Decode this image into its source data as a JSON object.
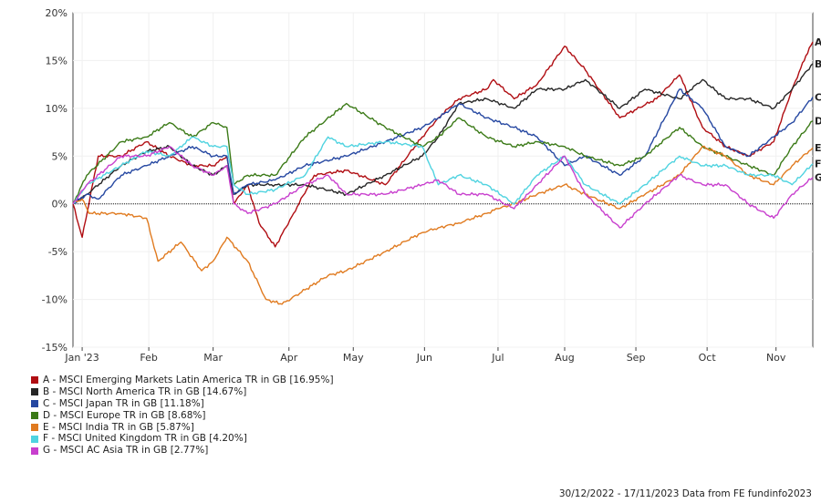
{
  "chart_data": {
    "type": "line",
    "title": "",
    "xlabel": "",
    "ylabel": "",
    "ylim": [
      -15,
      20
    ],
    "yticks": [
      -15,
      -10,
      -5,
      0,
      5,
      10,
      15,
      20
    ],
    "ytick_labels": [
      "-15%",
      "-10%",
      "-5%",
      "0%",
      "5%",
      "10%",
      "15%",
      "20%"
    ],
    "x_start": "2022-12-30",
    "x_end": "2023-11-17",
    "xticks": [
      {
        "label": "Jan '23",
        "date": "2023-01-03"
      },
      {
        "label": "Feb",
        "date": "2023-02-01"
      },
      {
        "label": "Mar",
        "date": "2023-03-01"
      },
      {
        "label": "Apr",
        "date": "2023-04-03"
      },
      {
        "label": "May",
        "date": "2023-05-01"
      },
      {
        "label": "Jun",
        "date": "2023-06-01"
      },
      {
        "label": "Jul",
        "date": "2023-07-03"
      },
      {
        "label": "Aug",
        "date": "2023-08-01"
      },
      {
        "label": "Sep",
        "date": "2023-09-01"
      },
      {
        "label": "Oct",
        "date": "2023-10-02"
      },
      {
        "label": "Nov",
        "date": "2023-11-01"
      }
    ],
    "grid": true,
    "series": [
      {
        "letter": "A",
        "name": "A - MSCI Emerging Markets Latin America TR in GB [16.95%]",
        "color": "#b00d12",
        "points": [
          [
            "2022-12-30",
            0
          ],
          [
            "2023-01-03",
            -3.5
          ],
          [
            "2023-01-10",
            5
          ],
          [
            "2023-01-20",
            5
          ],
          [
            "2023-01-31",
            6.5
          ],
          [
            "2023-02-10",
            5
          ],
          [
            "2023-02-20",
            4
          ],
          [
            "2023-03-01",
            4
          ],
          [
            "2023-03-07",
            5
          ],
          [
            "2023-03-10",
            0
          ],
          [
            "2023-03-16",
            2
          ],
          [
            "2023-03-21",
            -2
          ],
          [
            "2023-03-28",
            -4.5
          ],
          [
            "2023-04-05",
            -1
          ],
          [
            "2023-04-14",
            3
          ],
          [
            "2023-04-28",
            3.5
          ],
          [
            "2023-05-15",
            2
          ],
          [
            "2023-05-31",
            7
          ],
          [
            "2023-06-07",
            9
          ],
          [
            "2023-06-16",
            11
          ],
          [
            "2023-06-28",
            12
          ],
          [
            "2023-07-01",
            13
          ],
          [
            "2023-07-10",
            11
          ],
          [
            "2023-07-20",
            12.5
          ],
          [
            "2023-08-01",
            16.5
          ],
          [
            "2023-08-10",
            14
          ],
          [
            "2023-08-25",
            9
          ],
          [
            "2023-09-10",
            11
          ],
          [
            "2023-09-20",
            13.5
          ],
          [
            "2023-09-30",
            8
          ],
          [
            "2023-10-10",
            6
          ],
          [
            "2023-10-20",
            5
          ],
          [
            "2023-10-31",
            6.5
          ],
          [
            "2023-11-08",
            12
          ],
          [
            "2023-11-14",
            15.5
          ],
          [
            "2023-11-17",
            16.95
          ]
        ]
      },
      {
        "letter": "B",
        "name": "B - MSCI North America TR in GB [14.67%]",
        "color": "#262626",
        "points": [
          [
            "2022-12-30",
            0
          ],
          [
            "2023-01-05",
            1
          ],
          [
            "2023-01-20",
            4
          ],
          [
            "2023-01-31",
            5.5
          ],
          [
            "2023-02-10",
            6
          ],
          [
            "2023-02-20",
            4
          ],
          [
            "2023-03-01",
            3
          ],
          [
            "2023-03-07",
            4
          ],
          [
            "2023-03-10",
            1
          ],
          [
            "2023-03-16",
            2
          ],
          [
            "2023-03-28",
            2
          ],
          [
            "2023-04-10",
            2
          ],
          [
            "2023-04-28",
            1
          ],
          [
            "2023-05-15",
            3
          ],
          [
            "2023-05-31",
            5
          ],
          [
            "2023-06-07",
            7
          ],
          [
            "2023-06-16",
            10.5
          ],
          [
            "2023-06-28",
            11
          ],
          [
            "2023-07-10",
            10
          ],
          [
            "2023-07-20",
            12
          ],
          [
            "2023-08-01",
            12
          ],
          [
            "2023-08-10",
            13
          ],
          [
            "2023-08-25",
            10
          ],
          [
            "2023-09-05",
            12
          ],
          [
            "2023-09-20",
            11
          ],
          [
            "2023-09-30",
            13
          ],
          [
            "2023-10-10",
            11
          ],
          [
            "2023-10-20",
            11
          ],
          [
            "2023-10-31",
            10
          ],
          [
            "2023-11-08",
            12
          ],
          [
            "2023-11-17",
            14.67
          ]
        ]
      },
      {
        "letter": "C",
        "name": "C - MSCI Japan TR in GB [11.18%]",
        "color": "#2547a1",
        "points": [
          [
            "2022-12-30",
            0
          ],
          [
            "2023-01-05",
            1
          ],
          [
            "2023-01-10",
            0.5
          ],
          [
            "2023-01-20",
            3
          ],
          [
            "2023-01-31",
            4
          ],
          [
            "2023-02-10",
            5
          ],
          [
            "2023-02-20",
            6
          ],
          [
            "2023-03-01",
            5
          ],
          [
            "2023-03-07",
            5
          ],
          [
            "2023-03-10",
            1
          ],
          [
            "2023-03-16",
            2
          ],
          [
            "2023-03-28",
            2.5
          ],
          [
            "2023-04-10",
            4
          ],
          [
            "2023-04-28",
            5
          ],
          [
            "2023-05-15",
            6.5
          ],
          [
            "2023-05-31",
            8
          ],
          [
            "2023-06-07",
            9
          ],
          [
            "2023-06-16",
            10.5
          ],
          [
            "2023-06-28",
            9
          ],
          [
            "2023-07-10",
            8
          ],
          [
            "2023-07-20",
            7
          ],
          [
            "2023-08-01",
            4
          ],
          [
            "2023-08-10",
            5
          ],
          [
            "2023-08-25",
            3
          ],
          [
            "2023-09-05",
            5
          ],
          [
            "2023-09-20",
            12
          ],
          [
            "2023-09-30",
            10
          ],
          [
            "2023-10-10",
            6
          ],
          [
            "2023-10-20",
            5
          ],
          [
            "2023-10-31",
            7
          ],
          [
            "2023-11-08",
            8.5
          ],
          [
            "2023-11-17",
            11.18
          ]
        ]
      },
      {
        "letter": "D",
        "name": "D - MSCI Europe TR in GB [8.68%]",
        "color": "#3b7a17",
        "points": [
          [
            "2022-12-30",
            0
          ],
          [
            "2023-01-05",
            3
          ],
          [
            "2023-01-20",
            6.5
          ],
          [
            "2023-01-31",
            7
          ],
          [
            "2023-02-10",
            8.5
          ],
          [
            "2023-02-20",
            7
          ],
          [
            "2023-03-01",
            8.5
          ],
          [
            "2023-03-07",
            8
          ],
          [
            "2023-03-10",
            2
          ],
          [
            "2023-03-16",
            3
          ],
          [
            "2023-03-28",
            3
          ],
          [
            "2023-04-10",
            7
          ],
          [
            "2023-04-28",
            10.5
          ],
          [
            "2023-05-15",
            8
          ],
          [
            "2023-05-31",
            6
          ],
          [
            "2023-06-07",
            7
          ],
          [
            "2023-06-16",
            9
          ],
          [
            "2023-06-28",
            7
          ],
          [
            "2023-07-10",
            6
          ],
          [
            "2023-07-20",
            6.5
          ],
          [
            "2023-08-01",
            6
          ],
          [
            "2023-08-10",
            5
          ],
          [
            "2023-08-25",
            4
          ],
          [
            "2023-09-05",
            5
          ],
          [
            "2023-09-20",
            8
          ],
          [
            "2023-09-30",
            6
          ],
          [
            "2023-10-10",
            5
          ],
          [
            "2023-10-20",
            4
          ],
          [
            "2023-10-31",
            3
          ],
          [
            "2023-11-08",
            6
          ],
          [
            "2023-11-17",
            8.68
          ]
        ]
      },
      {
        "letter": "E",
        "name": "E - MSCI India TR in GB [5.87%]",
        "color": "#e07a1f",
        "points": [
          [
            "2022-12-30",
            0
          ],
          [
            "2023-01-03",
            0.5
          ],
          [
            "2023-01-06",
            -1
          ],
          [
            "2023-01-20",
            -1
          ],
          [
            "2023-01-31",
            -1.5
          ],
          [
            "2023-02-05",
            -6
          ],
          [
            "2023-02-15",
            -4
          ],
          [
            "2023-02-24",
            -7
          ],
          [
            "2023-03-01",
            -6
          ],
          [
            "2023-03-07",
            -3.5
          ],
          [
            "2023-03-16",
            -6
          ],
          [
            "2023-03-24",
            -10
          ],
          [
            "2023-03-31",
            -10.5
          ],
          [
            "2023-04-10",
            -9
          ],
          [
            "2023-04-20",
            -7.5
          ],
          [
            "2023-04-28",
            -7
          ],
          [
            "2023-05-15",
            -5
          ],
          [
            "2023-05-31",
            -3
          ],
          [
            "2023-06-07",
            -2.5
          ],
          [
            "2023-06-16",
            -2
          ],
          [
            "2023-06-28",
            -1
          ],
          [
            "2023-07-03",
            -0.5
          ],
          [
            "2023-07-10",
            0
          ],
          [
            "2023-07-20",
            1
          ],
          [
            "2023-08-01",
            2
          ],
          [
            "2023-08-10",
            1
          ],
          [
            "2023-08-25",
            -0.5
          ],
          [
            "2023-09-05",
            1
          ],
          [
            "2023-09-20",
            3
          ],
          [
            "2023-09-30",
            6
          ],
          [
            "2023-10-10",
            5
          ],
          [
            "2023-10-20",
            3
          ],
          [
            "2023-10-31",
            2
          ],
          [
            "2023-11-08",
            4
          ],
          [
            "2023-11-17",
            5.87
          ]
        ]
      },
      {
        "letter": "F",
        "name": "F - MSCI United Kingdom TR in GB [4.20%]",
        "color": "#4fd3e0",
        "points": [
          [
            "2022-12-30",
            0
          ],
          [
            "2023-01-05",
            2
          ],
          [
            "2023-01-20",
            4
          ],
          [
            "2023-01-31",
            5.5
          ],
          [
            "2023-02-10",
            5
          ],
          [
            "2023-02-20",
            7
          ],
          [
            "2023-03-01",
            6
          ],
          [
            "2023-03-07",
            6
          ],
          [
            "2023-03-10",
            2
          ],
          [
            "2023-03-16",
            1
          ],
          [
            "2023-03-28",
            1.5
          ],
          [
            "2023-04-10",
            3
          ],
          [
            "2023-04-20",
            7
          ],
          [
            "2023-04-28",
            6
          ],
          [
            "2023-05-15",
            6.5
          ],
          [
            "2023-05-31",
            6
          ],
          [
            "2023-06-07",
            2
          ],
          [
            "2023-06-16",
            3
          ],
          [
            "2023-06-28",
            2
          ],
          [
            "2023-07-10",
            0
          ],
          [
            "2023-07-20",
            3
          ],
          [
            "2023-08-01",
            5
          ],
          [
            "2023-08-10",
            2
          ],
          [
            "2023-08-25",
            0
          ],
          [
            "2023-09-05",
            2
          ],
          [
            "2023-09-20",
            5
          ],
          [
            "2023-09-30",
            4
          ],
          [
            "2023-10-10",
            4
          ],
          [
            "2023-10-20",
            3
          ],
          [
            "2023-10-31",
            3
          ],
          [
            "2023-11-08",
            2
          ],
          [
            "2023-11-17",
            4.2
          ]
        ]
      },
      {
        "letter": "G",
        "name": "G - MSCI AC Asia TR in GB [2.77%]",
        "color": "#c83fce",
        "points": [
          [
            "2022-12-30",
            0
          ],
          [
            "2023-01-05",
            2
          ],
          [
            "2023-01-20",
            5
          ],
          [
            "2023-01-31",
            5
          ],
          [
            "2023-02-10",
            6
          ],
          [
            "2023-02-20",
            4
          ],
          [
            "2023-03-01",
            3
          ],
          [
            "2023-03-07",
            4
          ],
          [
            "2023-03-10",
            0
          ],
          [
            "2023-03-16",
            -1
          ],
          [
            "2023-03-28",
            0
          ],
          [
            "2023-04-10",
            2
          ],
          [
            "2023-04-20",
            3
          ],
          [
            "2023-04-28",
            1
          ],
          [
            "2023-05-15",
            1
          ],
          [
            "2023-05-31",
            2
          ],
          [
            "2023-06-07",
            2.5
          ],
          [
            "2023-06-16",
            1
          ],
          [
            "2023-06-28",
            1
          ],
          [
            "2023-07-10",
            -0.5
          ],
          [
            "2023-07-20",
            2
          ],
          [
            "2023-08-01",
            5
          ],
          [
            "2023-08-10",
            1
          ],
          [
            "2023-08-25",
            -2.5
          ],
          [
            "2023-09-05",
            0
          ],
          [
            "2023-09-20",
            3
          ],
          [
            "2023-09-30",
            2
          ],
          [
            "2023-10-10",
            2
          ],
          [
            "2023-10-20",
            0
          ],
          [
            "2023-10-31",
            -1.5
          ],
          [
            "2023-11-08",
            1
          ],
          [
            "2023-11-17",
            2.77
          ]
        ]
      }
    ]
  },
  "footer": "30/12/2022 - 17/11/2023 Data from FE fundinfo2023"
}
